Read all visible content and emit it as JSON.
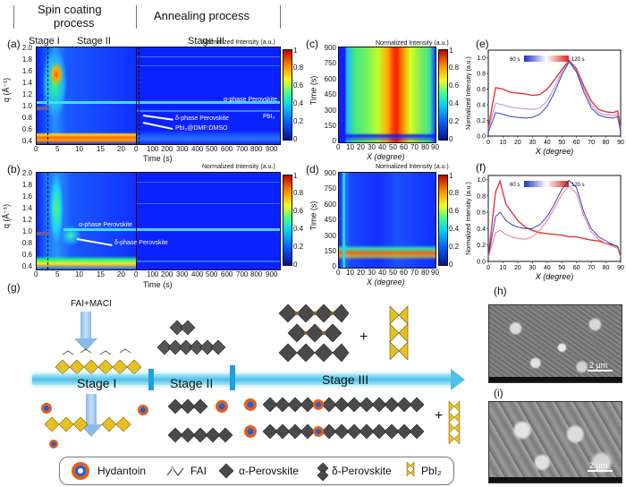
{
  "header": {
    "spin_coating": "Spin coating\nprocess",
    "spin1": "Spin coating",
    "spin2": "process",
    "annealing": "Annealing process"
  },
  "panels": {
    "a": "(a)",
    "b": "(b)",
    "c": "(c)",
    "d": "(d)",
    "e": "(e)",
    "f": "(f)",
    "g": "(g)",
    "h": "(h)",
    "i": "(i)"
  },
  "stages": {
    "s1": "Stage I",
    "s2": "Stage II",
    "s3": "Stage III"
  },
  "heatmap_a": {
    "norm_label": "Normalized Intensity (a.u.)",
    "ylabel": "q (Å⁻¹)",
    "xlabel": "Time (s)",
    "annotations": {
      "alpha": "α-phase Perovskite",
      "pbi2": "PbI₂",
      "delta": "δ-phase Perovskite",
      "dmf": "PbI₂@DMF:DMSO"
    },
    "yticks": [
      "2.0",
      "1.8",
      "1.6",
      "1.4",
      "1.2",
      "1.0",
      "0.8",
      "0.6",
      "0.4"
    ],
    "xticks_spin": [
      "0",
      "5",
      "10",
      "15",
      "20"
    ],
    "xticks_anneal": [
      "0",
      "100",
      "200",
      "300",
      "400",
      "500",
      "600",
      "700",
      "800",
      "900"
    ]
  },
  "heatmap_b": {
    "norm_label": "Normalized Intensity (a.u.)",
    "ylabel": "q (Å⁻¹)",
    "xlabel": "Time (s)",
    "annotations": {
      "alpha": "α-phase Perovskite",
      "delta": "δ-phase Perovskite"
    }
  },
  "colorbar_ticks": [
    "1",
    "0.8",
    "0.6",
    "0.4",
    "0.2",
    "0"
  ],
  "heatmap_c": {
    "norm_label": "Normalized Intensity (a.u.)",
    "ylabel": "Time (s)",
    "xlabel": "X (degree)",
    "yticks": [
      "900",
      "750",
      "600",
      "450",
      "300",
      "150",
      "0"
    ],
    "xticks": [
      "0",
      "10",
      "20",
      "30",
      "40",
      "50",
      "60",
      "70",
      "80",
      "90"
    ]
  },
  "heatmap_d": {
    "norm_label": "Normalized Intensity (a.u.)",
    "ylabel": "Time (s)",
    "xlabel": "X (degree)"
  },
  "chart_data": [
    {
      "type": "line",
      "panel": "e",
      "ylabel": "Normalized Intensity (a.u.)",
      "xlabel": "X (degree)",
      "legend_start": "60 s",
      "legend_end": "120 s",
      "xlim": [
        0,
        90
      ],
      "ylim": [
        0,
        1.1
      ],
      "xticks": [
        "0",
        "10",
        "20",
        "30",
        "40",
        "50",
        "60",
        "70",
        "80",
        "90"
      ],
      "yticks": [
        "0.0",
        "0.2",
        "0.4",
        "0.6",
        "0.8",
        "1.0"
      ],
      "series": [
        {
          "x": [
            0,
            5,
            10,
            15,
            20,
            25,
            30,
            35,
            40,
            45,
            50,
            55,
            60,
            65,
            70,
            75,
            80,
            85,
            88,
            90
          ],
          "values": [
            0.1,
            0.62,
            0.6,
            0.56,
            0.55,
            0.54,
            0.52,
            0.53,
            0.6,
            0.72,
            0.85,
            0.97,
            0.86,
            0.64,
            0.45,
            0.34,
            0.31,
            0.3,
            0.32,
            0.1
          ]
        },
        {
          "x": [
            0,
            5,
            10,
            15,
            20,
            25,
            30,
            35,
            40,
            45,
            50,
            55,
            60,
            65,
            70,
            75,
            80,
            85,
            88,
            90
          ],
          "values": [
            0.08,
            0.42,
            0.4,
            0.37,
            0.36,
            0.35,
            0.34,
            0.36,
            0.45,
            0.62,
            0.82,
            0.96,
            0.84,
            0.6,
            0.4,
            0.3,
            0.27,
            0.26,
            0.28,
            0.08
          ]
        },
        {
          "x": [
            0,
            5,
            10,
            15,
            20,
            25,
            30,
            35,
            40,
            45,
            50,
            55,
            60,
            65,
            70,
            75,
            80,
            85,
            88,
            90
          ],
          "values": [
            0.05,
            0.3,
            0.28,
            0.25,
            0.24,
            0.23,
            0.24,
            0.28,
            0.38,
            0.56,
            0.78,
            0.95,
            0.82,
            0.56,
            0.36,
            0.27,
            0.24,
            0.23,
            0.25,
            0.05
          ]
        }
      ]
    },
    {
      "type": "line",
      "panel": "f",
      "ylabel": "Normalized Intensity (a.u.)",
      "xlabel": "X (degree)",
      "legend_start": "60 s",
      "legend_end": "120 s",
      "xlim": [
        0,
        90
      ],
      "ylim": [
        0,
        1.05
      ],
      "xticks": [
        "0",
        "10",
        "20",
        "30",
        "40",
        "50",
        "60",
        "70",
        "80",
        "90"
      ],
      "yticks": [
        "0.0",
        "0.2",
        "0.4",
        "0.6",
        "0.8",
        "1.0"
      ],
      "series": [
        {
          "x": [
            0,
            5,
            8,
            12,
            16,
            20,
            25,
            30,
            35,
            40,
            45,
            50,
            55,
            60,
            65,
            70,
            75,
            80,
            85,
            88,
            90
          ],
          "values": [
            0.05,
            0.85,
            0.98,
            0.7,
            0.6,
            0.5,
            0.42,
            0.38,
            0.35,
            0.34,
            0.33,
            0.32,
            0.3,
            0.3,
            0.28,
            0.26,
            0.25,
            0.22,
            0.2,
            0.18,
            0.05
          ]
        },
        {
          "x": [
            0,
            5,
            8,
            12,
            16,
            20,
            25,
            30,
            35,
            40,
            45,
            50,
            55,
            60,
            65,
            70,
            75,
            80,
            85,
            88,
            90
          ],
          "values": [
            0.05,
            0.55,
            0.6,
            0.5,
            0.45,
            0.42,
            0.4,
            0.4,
            0.45,
            0.55,
            0.7,
            0.88,
            0.99,
            0.9,
            0.6,
            0.4,
            0.3,
            0.25,
            0.2,
            0.18,
            0.05
          ]
        },
        {
          "x": [
            0,
            5,
            8,
            12,
            16,
            20,
            25,
            30,
            35,
            40,
            45,
            50,
            55,
            60,
            65,
            70,
            75,
            80,
            85,
            88,
            90
          ],
          "values": [
            0.05,
            0.35,
            0.38,
            0.33,
            0.3,
            0.28,
            0.27,
            0.3,
            0.38,
            0.5,
            0.65,
            0.82,
            0.92,
            0.83,
            0.55,
            0.36,
            0.27,
            0.22,
            0.18,
            0.16,
            0.05
          ]
        }
      ]
    }
  ],
  "schematic": {
    "fai_maci": "FAI+MACI",
    "plus": "+"
  },
  "legend_g": {
    "hydantoin": "Hydantoin",
    "fai": "FAI",
    "alpha": "α-Perovskite",
    "delta": "δ-Perovskite",
    "pbi2": "PbI₂"
  },
  "sem": {
    "scale_h": "2 μm",
    "scale_i": "2 μm"
  },
  "colors": {
    "arrow": "#3fb8e8",
    "red": "#e02020",
    "blue": "#2030c0"
  }
}
